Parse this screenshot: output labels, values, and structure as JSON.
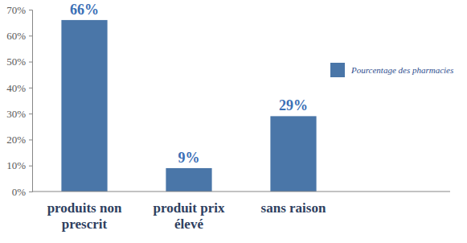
{
  "chart_data": {
    "type": "bar",
    "categories": [
      "produits non prescrit",
      "produit prix élevé",
      "sans raison"
    ],
    "series": [
      {
        "name": "Pourcentage des pharmacies",
        "color": "#4a76a8",
        "values": [
          66,
          9,
          29
        ],
        "value_labels": [
          "66%",
          "9%",
          "29%"
        ]
      }
    ],
    "ylim": [
      0,
      70
    ],
    "yticks": [
      {
        "value": 0,
        "label": "0%"
      },
      {
        "value": 10,
        "label": "10%"
      },
      {
        "value": 20,
        "label": "20%"
      },
      {
        "value": 30,
        "label": "30%"
      },
      {
        "value": 40,
        "label": "40%"
      },
      {
        "value": 50,
        "label": "50%"
      },
      {
        "value": 60,
        "label": "60%"
      },
      {
        "value": 70,
        "label": "70%"
      }
    ],
    "grid": false,
    "data_labels": true,
    "legend": "right"
  }
}
